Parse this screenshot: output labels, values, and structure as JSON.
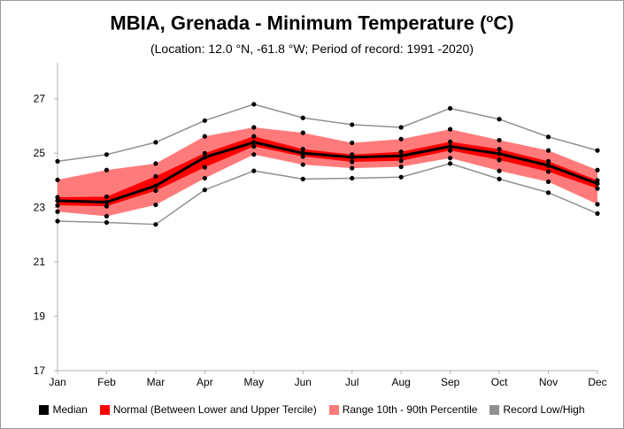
{
  "chart_data": {
    "type": "line",
    "title_main": "MBIA, Grenada - Minimum Temperature (",
    "title_unit_sup": "o",
    "title_unit_tail": "C)",
    "subtitle": "(Location: 12.0 °N, -61.8 °W; Period of record: 1991 -2020)",
    "categories": [
      "Jan",
      "Feb",
      "Mar",
      "Apr",
      "May",
      "Jun",
      "Jul",
      "Aug",
      "Sep",
      "Oct",
      "Nov",
      "Dec"
    ],
    "ylim": [
      17,
      28
    ],
    "yticks": [
      17,
      19,
      21,
      23,
      25,
      27
    ],
    "grid": false,
    "legend_placement": "bottom",
    "series": [
      {
        "name": "Record Low/High",
        "role": "record_low",
        "values": [
          22.5,
          22.45,
          22.38,
          23.65,
          24.35,
          24.05,
          24.08,
          24.12,
          24.62,
          24.05,
          23.55,
          22.78
        ]
      },
      {
        "name": "Record Low/High",
        "role": "record_high",
        "values": [
          24.7,
          24.95,
          25.4,
          26.2,
          26.8,
          26.3,
          26.05,
          25.95,
          26.65,
          26.25,
          25.6,
          25.1
        ]
      },
      {
        "name": "Range 10th - 90th Percentile",
        "role": "p10",
        "values": [
          22.85,
          22.68,
          23.1,
          24.08,
          24.95,
          24.58,
          24.45,
          24.5,
          24.82,
          24.35,
          23.95,
          23.12
        ]
      },
      {
        "name": "Range 10th - 90th Percentile",
        "role": "p90",
        "values": [
          24.02,
          24.38,
          24.62,
          25.62,
          25.95,
          25.75,
          25.38,
          25.52,
          25.88,
          25.48,
          25.1,
          24.38
        ]
      },
      {
        "name": "Normal (Between Lower and Upper Tercile)",
        "role": "lower_tercile",
        "values": [
          23.08,
          23.05,
          23.62,
          24.48,
          25.25,
          24.88,
          24.68,
          24.72,
          25.1,
          24.75,
          24.32,
          23.7
        ]
      },
      {
        "name": "Normal (Between Lower and Upper Tercile)",
        "role": "upper_tercile",
        "values": [
          23.38,
          23.4,
          24.15,
          25.0,
          25.62,
          25.15,
          24.95,
          25.05,
          25.42,
          25.15,
          24.7,
          24.0
        ]
      },
      {
        "name": "Median",
        "role": "median",
        "values": [
          23.25,
          23.2,
          23.8,
          24.85,
          25.4,
          25.0,
          24.85,
          24.9,
          25.25,
          24.98,
          24.55,
          23.88
        ]
      }
    ],
    "legend": [
      {
        "label": "Median",
        "color": "#000000"
      },
      {
        "label": "Normal (Between Lower and Upper Tercile)",
        "color": "#ff0000"
      },
      {
        "label": "Range 10th - 90th Percentile",
        "color": "#ff7b7b"
      },
      {
        "label": "Record Low/High",
        "color": "#909090"
      }
    ],
    "colors": {
      "median": "#000000",
      "tercile_band": "#ff0000",
      "percentile_band": "#ff7b7b",
      "record_line": "#909090",
      "axis": "#b0b0b0"
    }
  }
}
